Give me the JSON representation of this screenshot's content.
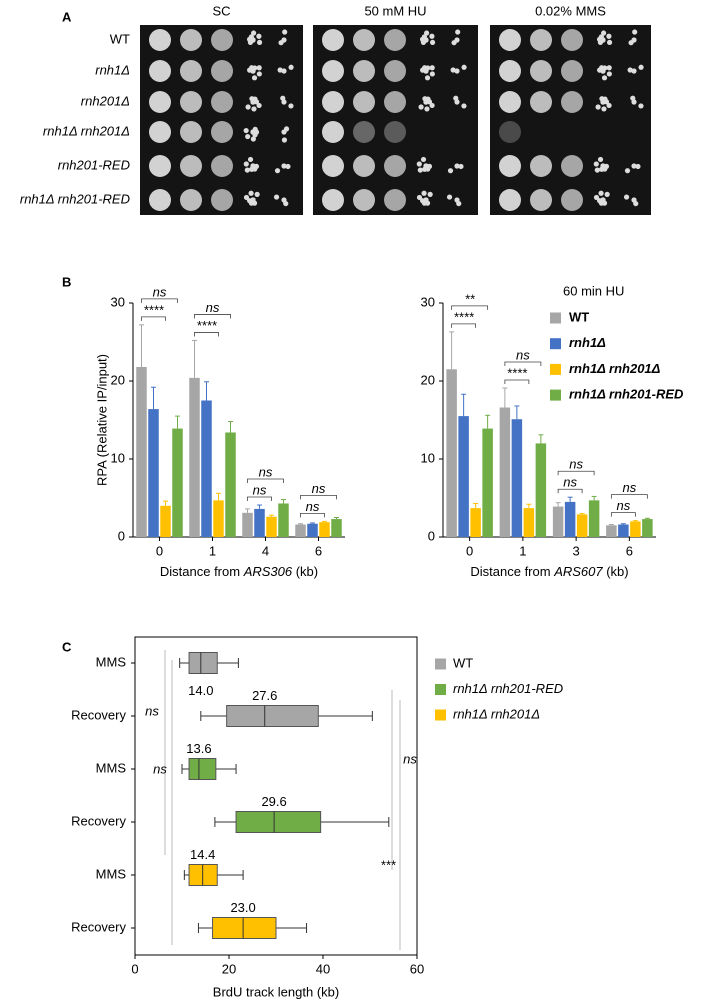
{
  "panel_labels": [
    "A",
    "B",
    "C"
  ],
  "plates": {
    "columns": [
      "SC",
      "50 mM HU",
      "0.02% MMS"
    ],
    "rows": [
      {
        "label": "WT",
        "italic": false
      },
      {
        "label": "rnh1Δ",
        "italic": true
      },
      {
        "label": "rnh201Δ",
        "italic": true
      },
      {
        "label": "rnh1Δ rnh201Δ",
        "italic": true
      },
      {
        "label": "rnh201-RED",
        "italic": true
      },
      {
        "label": "rnh1Δ rnh201-RED",
        "italic": true
      }
    ]
  },
  "chart_data": [
    {
      "type": "bar",
      "ylabel": "RPA  (Relative IP/input)",
      "xlabel": [
        "Distance from ",
        "ARS306",
        " (kb)"
      ],
      "categories": [
        "0",
        "1",
        "4",
        "6"
      ],
      "ylim": [
        0,
        30
      ],
      "yticks": [
        0,
        10,
        20,
        30
      ],
      "series": [
        {
          "color": "#a6a6a6",
          "values": [
            21.8,
            20.4,
            3.1,
            1.6
          ],
          "errors": [
            5.4,
            4.8,
            0.5,
            0.1
          ]
        },
        {
          "color": "#4472c4",
          "values": [
            16.4,
            17.5,
            3.6,
            1.7
          ],
          "errors": [
            2.8,
            2.4,
            0.5,
            0.1
          ]
        },
        {
          "color": "#ffc000",
          "values": [
            4.0,
            4.7,
            2.6,
            1.9
          ],
          "errors": [
            0.6,
            0.9,
            0.2,
            0.1
          ]
        },
        {
          "color": "#70ad47",
          "values": [
            13.9,
            13.4,
            4.3,
            2.3
          ],
          "errors": [
            1.6,
            1.4,
            0.5,
            0.2
          ]
        }
      ],
      "significance": [
        [
          "****",
          "ns"
        ],
        [
          "****",
          "ns"
        ],
        [
          "ns",
          "ns"
        ],
        [
          "ns",
          "ns"
        ]
      ]
    },
    {
      "type": "bar",
      "xlabel": [
        "Distance from ",
        "ARS607",
        " (kb)"
      ],
      "categories": [
        "0",
        "1",
        "3",
        "6"
      ],
      "ylim": [
        0,
        30
      ],
      "yticks": [
        0,
        10,
        20,
        30
      ],
      "legend": {
        "title": "60 min HU",
        "position": "top-right"
      },
      "series": [
        {
          "name": "WT",
          "italic": false,
          "color": "#a6a6a6",
          "values": [
            21.5,
            16.6,
            3.9,
            1.5
          ],
          "errors": [
            4.8,
            2.5,
            0.5,
            0.1
          ]
        },
        {
          "name": "rnh1Δ",
          "italic": true,
          "color": "#4472c4",
          "values": [
            15.5,
            15.1,
            4.5,
            1.6
          ],
          "errors": [
            2.8,
            1.7,
            0.6,
            0.1
          ]
        },
        {
          "name": "rnh1Δ rnh201Δ",
          "italic": true,
          "color": "#ffc000",
          "values": [
            3.7,
            3.7,
            2.9,
            2.0
          ],
          "errors": [
            0.6,
            0.5,
            0.1,
            0.1
          ]
        },
        {
          "name": "rnh1Δ rnh201-RED",
          "italic": true,
          "color": "#70ad47",
          "values": [
            13.9,
            12.0,
            4.7,
            2.3
          ],
          "errors": [
            1.7,
            1.1,
            0.5,
            0.1
          ]
        }
      ],
      "significance": [
        [
          "****",
          "**"
        ],
        [
          "****",
          "ns"
        ],
        [
          "ns",
          "ns"
        ],
        [
          "ns",
          "ns"
        ]
      ]
    },
    {
      "type": "box",
      "xlabel": "BrdU track length (kb)",
      "categories": [
        "MMS",
        "Recovery",
        "MMS",
        "Recovery",
        "MMS",
        "Recovery"
      ],
      "xlim": [
        0,
        60
      ],
      "xticks": [
        0,
        20,
        40,
        60
      ],
      "series": [
        {
          "name": "WT",
          "italic": false,
          "color": "#a6a6a6",
          "boxes": [
            {
              "min": 9.5,
              "q1": 11.5,
              "median": 14.0,
              "q3": 17.5,
              "max": 22
            },
            {
              "min": 14,
              "q1": 19.5,
              "median": 27.6,
              "q3": 39,
              "max": 50.5
            }
          ],
          "value_labels": [
            "14.0",
            "27.6"
          ]
        },
        {
          "name": "rnh1Δ rnh201-RED",
          "italic": true,
          "color": "#70ad47",
          "boxes": [
            {
              "min": 10,
              "q1": 11.5,
              "median": 13.6,
              "q3": 17.2,
              "max": 21.5
            },
            {
              "min": 17,
              "q1": 21.5,
              "median": 29.6,
              "q3": 39.5,
              "max": 54
            }
          ],
          "value_labels": [
            "13.6",
            "29.6"
          ]
        },
        {
          "name": "rnh1Δ rnh201Δ",
          "italic": true,
          "color": "#ffc000",
          "boxes": [
            {
              "min": 10.5,
              "q1": 11.5,
              "median": 14.4,
              "q3": 17.5,
              "max": 23
            },
            {
              "min": 13.5,
              "q1": 16.5,
              "median": 23.0,
              "q3": 30,
              "max": 36.5
            }
          ],
          "value_labels": [
            "14.4",
            "23.0"
          ]
        }
      ],
      "significance": [
        "ns",
        "ns",
        "ns",
        "***"
      ]
    }
  ]
}
